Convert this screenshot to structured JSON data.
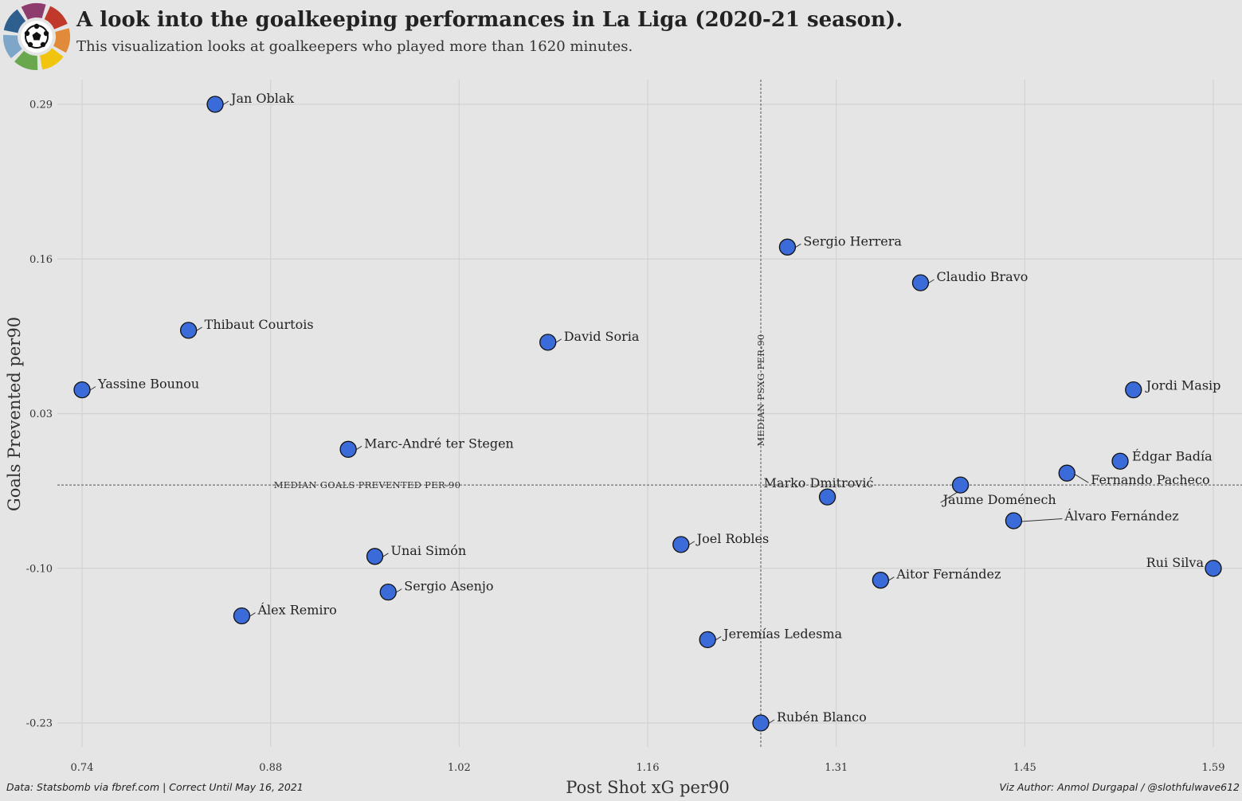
{
  "header": {
    "title": "A look into the goalkeeping performances in La Liga (2020-21 season).",
    "subtitle": "This visualization looks at goalkeepers who played more than 1620 minutes.",
    "logo_colors": [
      "#c0392b",
      "#e08a3a",
      "#f1c40f",
      "#6aa84f",
      "#7ea6c9",
      "#2f5f8f",
      "#8e3b6e"
    ]
  },
  "footer": {
    "source": "Data: Statsbomb via fbref.com | Correct Until May 16, 2021",
    "author": "Viz Author: Anmol Durgapal / @slothfulwave612"
  },
  "chart_data": {
    "type": "scatter",
    "xlabel": "Post Shot xG per90",
    "ylabel": "Goals Prevented per90",
    "xlim": [
      0.72,
      1.61
    ],
    "ylim": [
      -0.25,
      0.31
    ],
    "x_ticks": [
      "0.74",
      "0.88",
      "1.02",
      "1.16",
      "1.31",
      "1.45",
      "1.59"
    ],
    "y_ticks": [
      "0.29",
      "0.16",
      "0.03",
      "-0.10",
      "-0.23"
    ],
    "grid": true,
    "colors": {
      "marker": "#3b6ad9",
      "marker_edge": "#111111",
      "background": "#e5e5e5",
      "grid": "#d2d2d2"
    },
    "median_x": {
      "value": 1.25,
      "label": "MEDIAN PSXG PER-90"
    },
    "median_y": {
      "value": -0.03,
      "label": "MEDIAN GOALS PREVENTED PER-90"
    },
    "points": [
      {
        "name": "Jan Oblak",
        "x": 0.84,
        "y": 0.29
      },
      {
        "name": "Sergio Herrera",
        "x": 1.27,
        "y": 0.17
      },
      {
        "name": "Claudio Bravo",
        "x": 1.37,
        "y": 0.14
      },
      {
        "name": "Thibaut Courtois",
        "x": 0.82,
        "y": 0.1
      },
      {
        "name": "David Soria",
        "x": 1.09,
        "y": 0.09
      },
      {
        "name": "Yassine Bounou",
        "x": 0.74,
        "y": 0.05
      },
      {
        "name": "Jordi Masip",
        "x": 1.53,
        "y": 0.05
      },
      {
        "name": "Marc-André ter Stegen",
        "x": 0.94,
        "y": 0.0
      },
      {
        "name": "Édgar Badía",
        "x": 1.52,
        "y": -0.01
      },
      {
        "name": "Fernando Pacheco",
        "x": 1.48,
        "y": -0.02
      },
      {
        "name": "Jaume Doménech",
        "x": 1.4,
        "y": -0.03
      },
      {
        "name": "Marko Dmitrović",
        "x": 1.3,
        "y": -0.04
      },
      {
        "name": "Álvaro Fernández",
        "x": 1.44,
        "y": -0.06
      },
      {
        "name": "Joel Robles",
        "x": 1.19,
        "y": -0.08
      },
      {
        "name": "Unai Simón",
        "x": 0.96,
        "y": -0.09
      },
      {
        "name": "Rui Silva",
        "x": 1.59,
        "y": -0.1
      },
      {
        "name": "Aitor Fernández",
        "x": 1.34,
        "y": -0.11
      },
      {
        "name": "Sergio Asenjo",
        "x": 0.97,
        "y": -0.12
      },
      {
        "name": "Álex Remiro",
        "x": 0.86,
        "y": -0.14
      },
      {
        "name": "Jeremías Ledesma",
        "x": 1.21,
        "y": -0.16
      },
      {
        "name": "Rubén Blanco",
        "x": 1.25,
        "y": -0.23
      }
    ]
  }
}
